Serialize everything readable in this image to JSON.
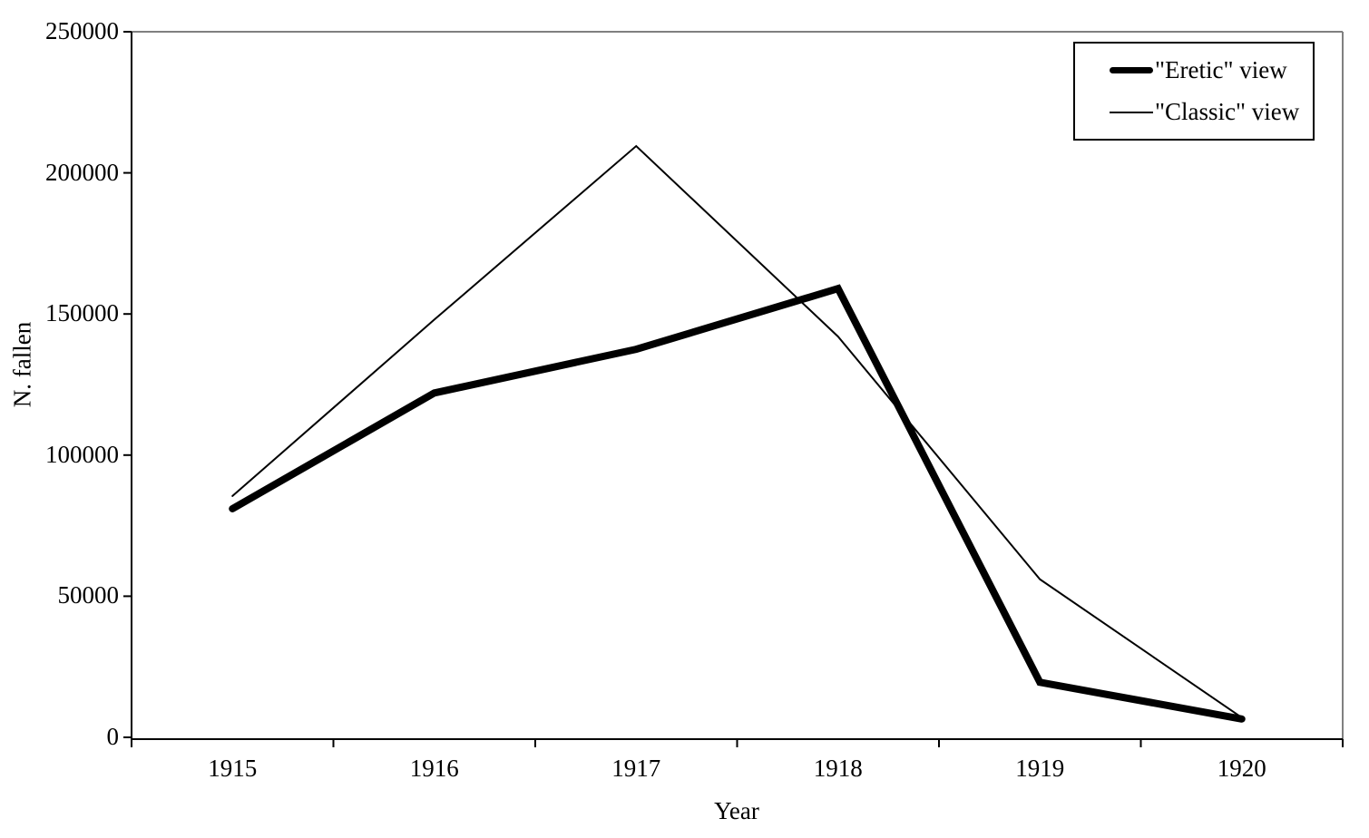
{
  "chart_data": {
    "type": "line",
    "categories": [
      "1915",
      "1916",
      "1917",
      "1918",
      "1919",
      "1920"
    ],
    "series": [
      {
        "name": "\"Eretic\" view",
        "values": [
          81000,
          122000,
          137500,
          159000,
          19500,
          6500
        ],
        "stroke_width": 8
      },
      {
        "name": "\"Classic\" view",
        "values": [
          85500,
          148000,
          209500,
          142000,
          56000,
          7000
        ],
        "stroke_width": 2
      }
    ],
    "title": "",
    "xlabel": "Year",
    "ylabel": "N. fallen",
    "ylim": [
      0,
      250000
    ],
    "y_tick_step": 50000,
    "y_tick_labels": [
      "0",
      "50000",
      "100000",
      "150000",
      "200000",
      "250000"
    ],
    "grid": false,
    "legend_position": "top-right",
    "line_color": "#000000",
    "axis_color": "#000000",
    "plot_border_color": "#808080",
    "background": "#ffffff"
  }
}
